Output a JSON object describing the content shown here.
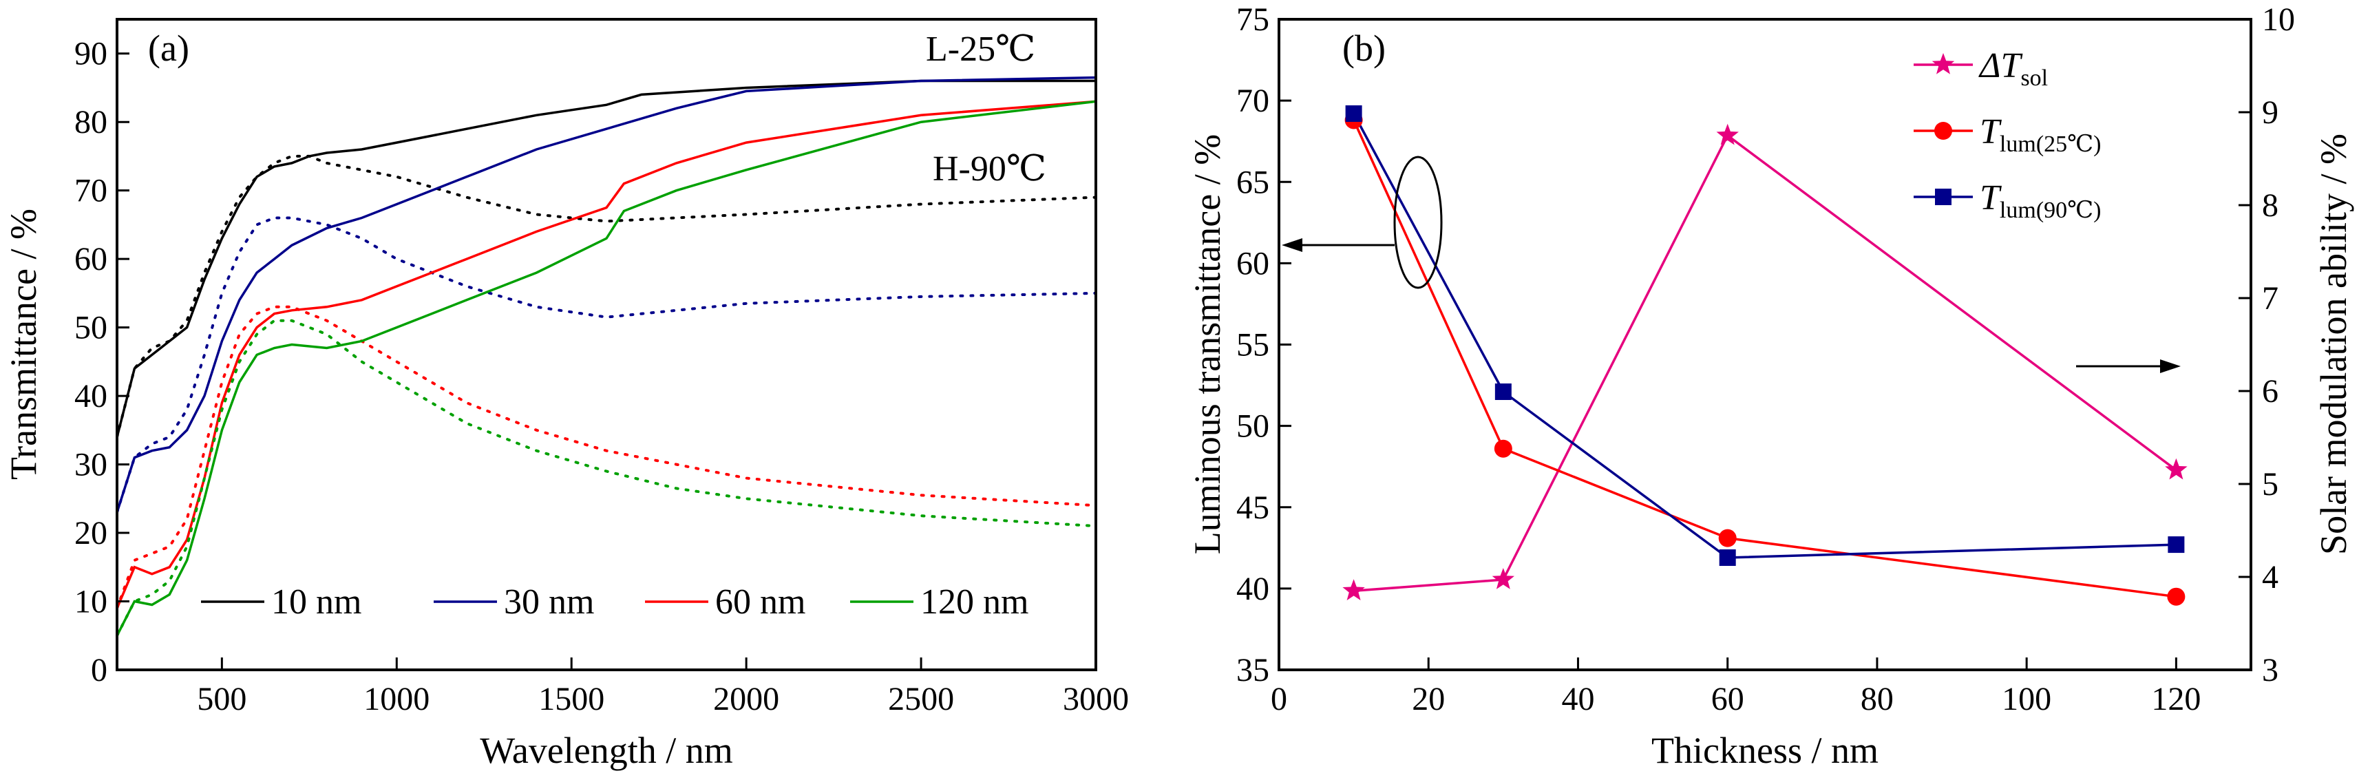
{
  "chart_data": [
    {
      "panel": "(a)",
      "type": "line",
      "xlabel": "Wavelength / nm",
      "ylabel": "Transmittance / %",
      "xlim": [
        200,
        3000
      ],
      "ylim": [
        0,
        95
      ],
      "xticks": [
        500,
        1000,
        1500,
        2000,
        2500,
        3000
      ],
      "yticks": [
        0,
        10,
        20,
        30,
        40,
        50,
        60,
        70,
        80,
        90
      ],
      "legend_position": "bottom",
      "annotations": [
        "L-25℃",
        "H-90℃"
      ],
      "line_style_note": [
        "solid",
        "dotted"
      ],
      "series": [
        {
          "name": "10 nm",
          "color": "#000000",
          "solid": [
            [
              200,
              34
            ],
            [
              250,
              44
            ],
            [
              300,
              46
            ],
            [
              350,
              48
            ],
            [
              400,
              50
            ],
            [
              450,
              57
            ],
            [
              500,
              63
            ],
            [
              550,
              68
            ],
            [
              600,
              72
            ],
            [
              650,
              73.5
            ],
            [
              700,
              74
            ],
            [
              750,
              75
            ],
            [
              800,
              75.5
            ],
            [
              900,
              76
            ],
            [
              1000,
              77
            ],
            [
              1200,
              79
            ],
            [
              1400,
              81
            ],
            [
              1600,
              82.5
            ],
            [
              1700,
              84
            ],
            [
              2000,
              85
            ],
            [
              2500,
              86
            ],
            [
              3000,
              86
            ]
          ],
          "dotted": [
            [
              200,
              34
            ],
            [
              250,
              44
            ],
            [
              300,
              47
            ],
            [
              350,
              48
            ],
            [
              400,
              51
            ],
            [
              450,
              58
            ],
            [
              500,
              64
            ],
            [
              550,
              69
            ],
            [
              600,
              72
            ],
            [
              650,
              74
            ],
            [
              700,
              75
            ],
            [
              750,
              75
            ],
            [
              800,
              74
            ],
            [
              900,
              73
            ],
            [
              1000,
              72
            ],
            [
              1200,
              69
            ],
            [
              1400,
              66.5
            ],
            [
              1600,
              65.5
            ],
            [
              2000,
              66.5
            ],
            [
              2500,
              68
            ],
            [
              3000,
              69
            ]
          ]
        },
        {
          "name": "30 nm",
          "color": "#00008B",
          "solid": [
            [
              200,
              23
            ],
            [
              250,
              31
            ],
            [
              300,
              32
            ],
            [
              350,
              32.5
            ],
            [
              400,
              35
            ],
            [
              450,
              40
            ],
            [
              500,
              48
            ],
            [
              550,
              54
            ],
            [
              600,
              58
            ],
            [
              650,
              60
            ],
            [
              700,
              62
            ],
            [
              800,
              64.5
            ],
            [
              900,
              66
            ],
            [
              1000,
              68
            ],
            [
              1200,
              72
            ],
            [
              1400,
              76
            ],
            [
              1600,
              79
            ],
            [
              1800,
              82
            ],
            [
              2000,
              84.5
            ],
            [
              2500,
              86
            ],
            [
              3000,
              86.5
            ]
          ],
          "dotted": [
            [
              200,
              23
            ],
            [
              250,
              31
            ],
            [
              300,
              33
            ],
            [
              350,
              34
            ],
            [
              400,
              38
            ],
            [
              450,
              46
            ],
            [
              500,
              55
            ],
            [
              550,
              61
            ],
            [
              600,
              65
            ],
            [
              650,
              66
            ],
            [
              700,
              66
            ],
            [
              800,
              65
            ],
            [
              900,
              63
            ],
            [
              1000,
              60
            ],
            [
              1200,
              56
            ],
            [
              1400,
              53
            ],
            [
              1600,
              51.5
            ],
            [
              1800,
              52.5
            ],
            [
              2000,
              53.5
            ],
            [
              2500,
              54.5
            ],
            [
              3000,
              55
            ]
          ]
        },
        {
          "name": "60 nm",
          "color": "#FF0000",
          "solid": [
            [
              200,
              9
            ],
            [
              250,
              15
            ],
            [
              300,
              14
            ],
            [
              350,
              15
            ],
            [
              400,
              19
            ],
            [
              450,
              28
            ],
            [
              500,
              39
            ],
            [
              550,
              46
            ],
            [
              600,
              50
            ],
            [
              650,
              52
            ],
            [
              700,
              52.5
            ],
            [
              800,
              53
            ],
            [
              900,
              54
            ],
            [
              1000,
              56
            ],
            [
              1200,
              60
            ],
            [
              1400,
              64
            ],
            [
              1600,
              67.5
            ],
            [
              1650,
              71
            ],
            [
              1800,
              74
            ],
            [
              2000,
              77
            ],
            [
              2500,
              81
            ],
            [
              3000,
              83
            ]
          ],
          "dotted": [
            [
              200,
              9
            ],
            [
              250,
              16
            ],
            [
              300,
              17
            ],
            [
              350,
              18
            ],
            [
              400,
              22
            ],
            [
              450,
              32
            ],
            [
              500,
              42
            ],
            [
              550,
              49
            ],
            [
              600,
              52
            ],
            [
              650,
              53
            ],
            [
              700,
              53
            ],
            [
              800,
              51
            ],
            [
              900,
              48
            ],
            [
              1000,
              45
            ],
            [
              1200,
              39
            ],
            [
              1400,
              35
            ],
            [
              1600,
              32
            ],
            [
              1800,
              30
            ],
            [
              2000,
              28
            ],
            [
              2500,
              25.5
            ],
            [
              3000,
              24
            ]
          ]
        },
        {
          "name": "120 nm",
          "color": "#00A000",
          "solid": [
            [
              200,
              5
            ],
            [
              250,
              10
            ],
            [
              300,
              9.5
            ],
            [
              350,
              11
            ],
            [
              400,
              16
            ],
            [
              450,
              25
            ],
            [
              500,
              35
            ],
            [
              550,
              42
            ],
            [
              600,
              46
            ],
            [
              650,
              47
            ],
            [
              700,
              47.5
            ],
            [
              800,
              47
            ],
            [
              900,
              48
            ],
            [
              1000,
              50
            ],
            [
              1200,
              54
            ],
            [
              1400,
              58
            ],
            [
              1600,
              63
            ],
            [
              1650,
              67
            ],
            [
              1800,
              70
            ],
            [
              2000,
              73
            ],
            [
              2500,
              80
            ],
            [
              3000,
              83
            ]
          ],
          "dotted": [
            [
              200,
              5
            ],
            [
              250,
              10
            ],
            [
              300,
              11
            ],
            [
              350,
              13
            ],
            [
              400,
              18
            ],
            [
              450,
              28
            ],
            [
              500,
              38
            ],
            [
              550,
              45
            ],
            [
              600,
              49
            ],
            [
              650,
              51
            ],
            [
              700,
              51
            ],
            [
              800,
              49
            ],
            [
              900,
              45
            ],
            [
              1000,
              42
            ],
            [
              1200,
              36
            ],
            [
              1400,
              32
            ],
            [
              1600,
              29
            ],
            [
              1800,
              26.5
            ],
            [
              2000,
              25
            ],
            [
              2500,
              22.5
            ],
            [
              3000,
              21
            ]
          ]
        }
      ]
    },
    {
      "panel": "(b)",
      "type": "line",
      "xlabel": "Thickness / nm",
      "ylabel": "Luminous transmittance / %",
      "ylabel_right": "Solar modulation ability / %",
      "xlim": [
        0,
        130
      ],
      "ylim": [
        35,
        75
      ],
      "ylim_right": [
        3,
        10
      ],
      "xticks": [
        0,
        20,
        40,
        60,
        80,
        100,
        120
      ],
      "yticks": [
        35,
        40,
        45,
        50,
        55,
        60,
        65,
        70,
        75
      ],
      "yticks_right": [
        3,
        4,
        5,
        6,
        7,
        8,
        9,
        10
      ],
      "legend_position": "top-right",
      "x": [
        10,
        30,
        60,
        120
      ],
      "series": [
        {
          "name": "ΔT",
          "sub": "sol",
          "axis": "right",
          "marker": "star",
          "color": "#E6007E",
          "values": [
            3.85,
            3.97,
            8.75,
            5.15
          ]
        },
        {
          "name": "T",
          "sub": "lum(25℃)",
          "axis": "left",
          "marker": "circle",
          "color": "#FF0000",
          "values": [
            68.8,
            48.6,
            43.1,
            39.5
          ]
        },
        {
          "name": "T",
          "sub": "lum(90℃)",
          "axis": "left",
          "marker": "square",
          "color": "#00008B",
          "values": [
            69.2,
            52.1,
            41.9,
            42.7
          ]
        }
      ]
    }
  ]
}
